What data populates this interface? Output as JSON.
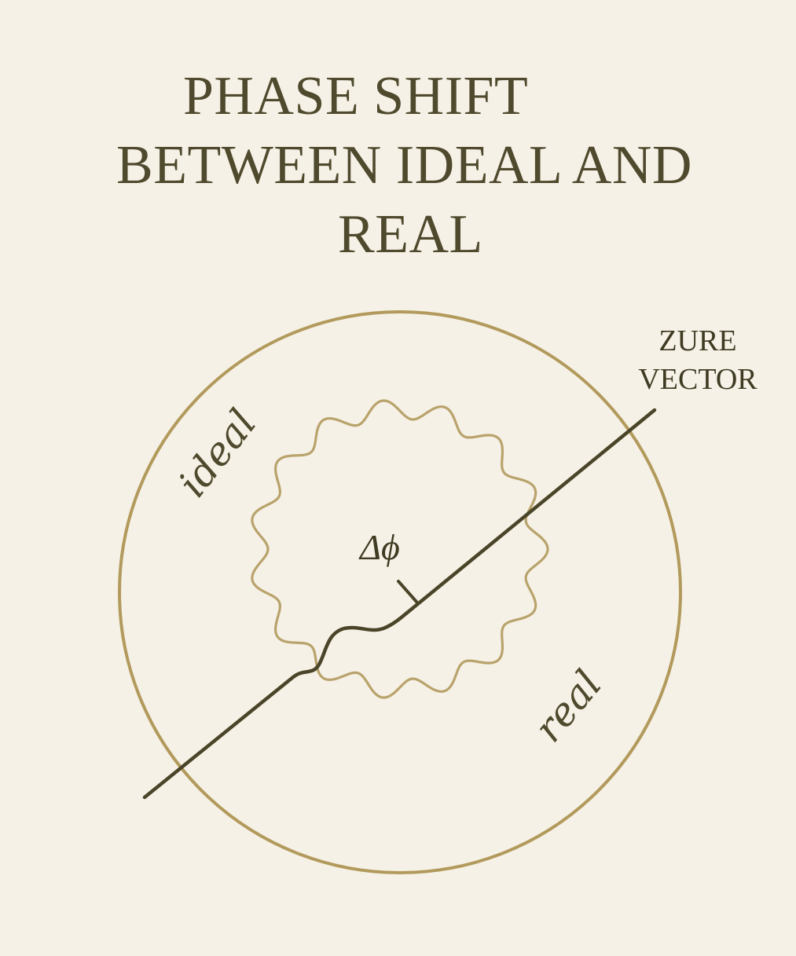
{
  "title": {
    "line1": "PHASE SHIFT",
    "line2": "BETWEEN IDEAL AND",
    "line3": "REAL"
  },
  "labels": {
    "ideal": "ideal",
    "real": "real",
    "delta_phi": "Δϕ",
    "vector_line1": "ZURE",
    "vector_line2": "VECTOR"
  },
  "colors": {
    "background": "#f6f1e6",
    "circle": "#b29a5c",
    "wavy": "#b9a36c",
    "vector": "#4a4428",
    "text": "#4f4a2d"
  }
}
